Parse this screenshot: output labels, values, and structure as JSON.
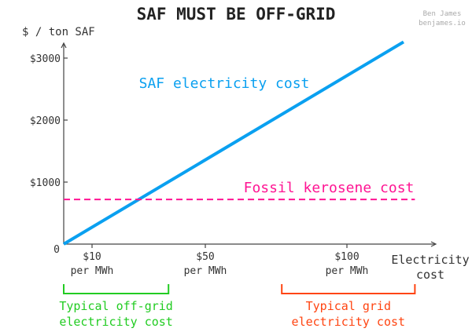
{
  "chart_data": {
    "type": "line",
    "title": "SAF MUST BE OFF-GRID",
    "credit": [
      "Ben James",
      "benjames.io"
    ],
    "ylabel": "$ / ton SAF",
    "xlabel": [
      "Electricity",
      "cost"
    ],
    "xlim": [
      0,
      125
    ],
    "ylim": [
      0,
      3400
    ],
    "x_ticks": [
      {
        "value": 10,
        "label": [
          "$10",
          "per MWh"
        ]
      },
      {
        "value": 50,
        "label": [
          "$50",
          "per MWh"
        ]
      },
      {
        "value": 100,
        "label": [
          "$100",
          "per MWh"
        ]
      }
    ],
    "y_ticks": [
      {
        "value": 1000,
        "label": "$1000"
      },
      {
        "value": 2000,
        "label": "$2000"
      },
      {
        "value": 3000,
        "label": "$3000"
      }
    ],
    "origin_label": "0",
    "series": [
      {
        "name": "SAF electricity cost",
        "color": "#0aa0f0",
        "style": "solid",
        "x": [
          0,
          120
        ],
        "y": [
          0,
          3260
        ]
      },
      {
        "name": "Fossil kerosene cost",
        "color": "#ff1493",
        "style": "dashed",
        "x": [
          0,
          124
        ],
        "y": [
          720,
          720
        ]
      }
    ],
    "ranges": [
      {
        "label": [
          "Typical off-grid",
          "electricity cost"
        ],
        "from": 0,
        "to": 37,
        "color": "#22cc22"
      },
      {
        "label": [
          "Typical grid",
          "electricity cost"
        ],
        "from": 77,
        "to": 124,
        "color": "#ff4411"
      }
    ],
    "grid": false,
    "legend": "none"
  }
}
